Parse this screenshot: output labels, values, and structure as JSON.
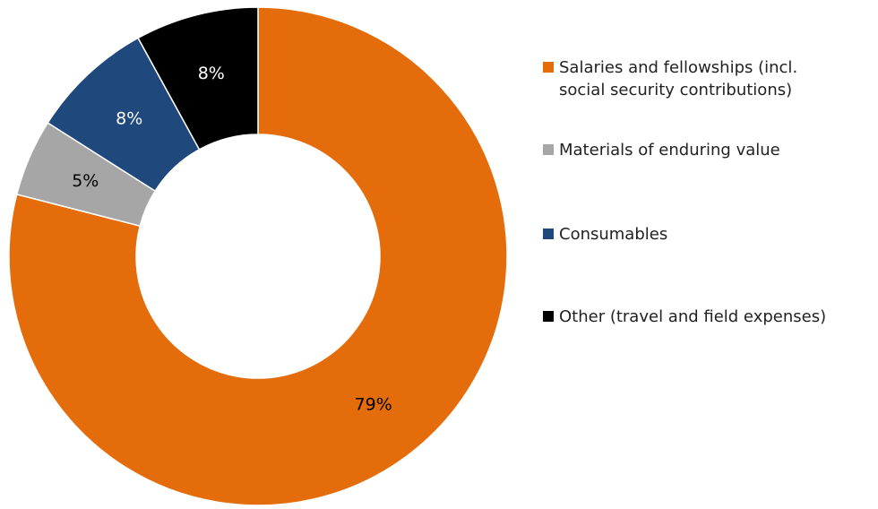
{
  "chart_data": {
    "type": "pie",
    "donut": true,
    "title": "",
    "legend_position": "right",
    "categories": [
      "Salaries and fellowships (incl. social security contributions)",
      "Materials of enduring value",
      "Consumables",
      "Other (travel and field expenses)"
    ],
    "values": [
      79,
      5,
      8,
      8
    ],
    "value_labels": [
      "79%",
      "5%",
      "8%",
      "8%"
    ],
    "unit": "%",
    "colors": [
      "#E46C0A",
      "#A6A6A6",
      "#1F497D",
      "#000000"
    ],
    "label_colors": [
      "#000000",
      "#000000",
      "#FFFFFF",
      "#FFFFFF"
    ],
    "legend": [
      {
        "lines": [
          "Salaries and fellowships (incl.",
          "social security contributions)"
        ],
        "color": "#E46C0A"
      },
      {
        "lines": [
          "Materials of enduring value"
        ],
        "color": "#A6A6A6"
      },
      {
        "lines": [
          "Consumables"
        ],
        "color": "#1F497D"
      },
      {
        "lines": [
          "Other (travel and field expenses)"
        ],
        "color": "#000000"
      }
    ]
  }
}
